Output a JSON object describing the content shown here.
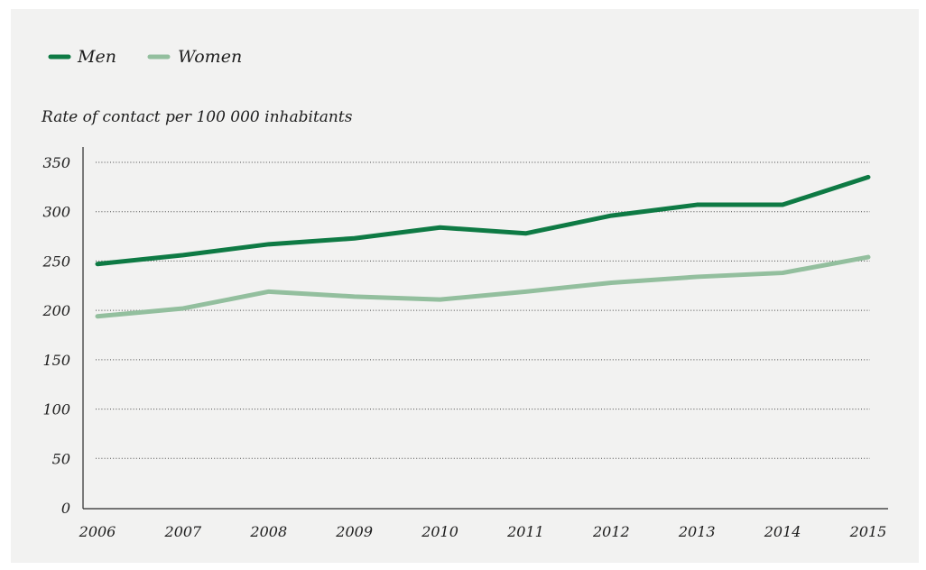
{
  "chart_data": {
    "type": "line",
    "title": "",
    "xlabel": "",
    "ylabel": "Rate of contact per 100 000 inhabitants",
    "categories": [
      "2006",
      "2007",
      "2008",
      "2009",
      "2010",
      "2011",
      "2012",
      "2013",
      "2014",
      "2015"
    ],
    "series": [
      {
        "name": "Men",
        "color": "#0e7a44",
        "values": [
          247,
          256,
          267,
          273,
          284,
          278,
          296,
          307,
          307,
          335
        ]
      },
      {
        "name": "Women",
        "color": "#93bf9e",
        "values": [
          194,
          202,
          219,
          214,
          211,
          219,
          228,
          234,
          238,
          254
        ]
      }
    ],
    "yticks": [
      "0",
      "50",
      "100",
      "150",
      "200",
      "250",
      "300",
      "350"
    ],
    "ylim": [
      0,
      350
    ],
    "grid": true,
    "legend_position": "top-left"
  }
}
